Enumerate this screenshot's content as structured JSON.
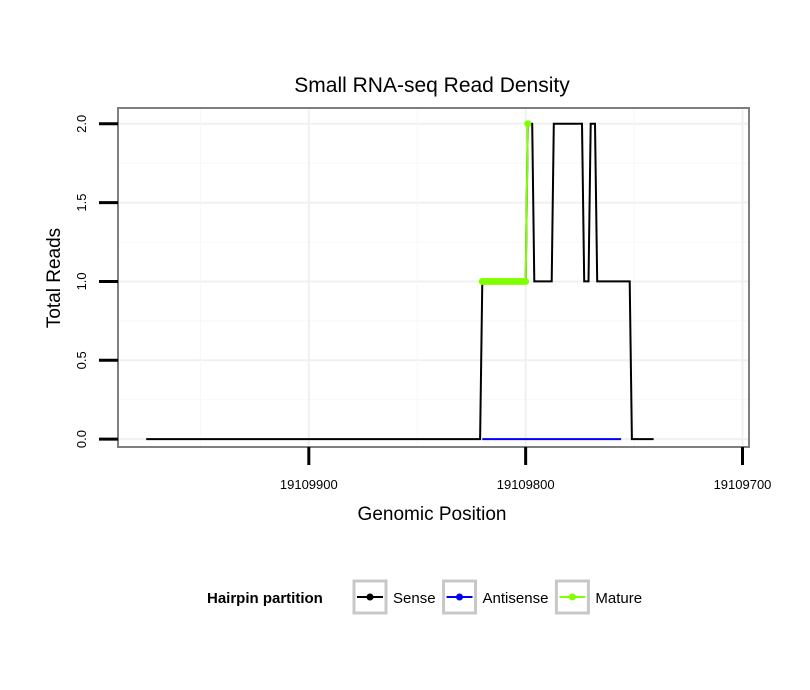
{
  "chart_data": {
    "type": "line",
    "title": "Small RNA-seq Read Density",
    "xlabel": "Genomic Position",
    "ylabel": "Total Reads",
    "xlim": [
      19109988,
      19109697
    ],
    "x_reversed": true,
    "ylim": [
      -0.05,
      2.1
    ],
    "grid": true,
    "x_ticks": [
      19109900,
      19109800,
      19109700
    ],
    "x_tick_labels": [
      "19109900",
      "19109800",
      "19109700"
    ],
    "y_ticks": [
      0.0,
      0.5,
      1.0,
      1.5,
      2.0
    ],
    "y_tick_labels": [
      "0.0",
      "0.5",
      "1.0",
      "1.5",
      "2.0"
    ],
    "series": [
      {
        "name": "Antisense",
        "color": "#0000ff",
        "x": [
          19109820,
          19109756
        ],
        "y": [
          0,
          0
        ]
      },
      {
        "name": "Sense",
        "color": "#000000",
        "x": [
          19109975,
          19109821,
          19109820,
          19109800,
          19109799,
          19109797,
          19109796,
          19109793,
          19109792,
          19109788,
          19109787,
          19109774,
          19109773,
          19109771,
          19109770,
          19109768,
          19109767,
          19109762,
          19109761,
          19109752,
          19109751,
          19109741
        ],
        "y": [
          0,
          0,
          1,
          1,
          2,
          2,
          1,
          1,
          1,
          1,
          2,
          2,
          1,
          1,
          2,
          2,
          1,
          1,
          1,
          1,
          0,
          0
        ]
      },
      {
        "name": "Mature",
        "color": "#7fff00",
        "x": [
          19109820,
          19109819,
          19109818,
          19109817,
          19109816,
          19109815,
          19109814,
          19109813,
          19109812,
          19109811,
          19109810,
          19109809,
          19109808,
          19109807,
          19109806,
          19109805,
          19109804,
          19109803,
          19109802,
          19109801,
          19109800,
          19109799
        ],
        "y": [
          1,
          1,
          1,
          1,
          1,
          1,
          1,
          1,
          1,
          1,
          1,
          1,
          1,
          1,
          1,
          1,
          1,
          1,
          1,
          1,
          1,
          2
        ]
      }
    ],
    "legend": {
      "title": "Hairpin partition",
      "position": "bottom",
      "entries": [
        {
          "label": "Sense",
          "color": "#000000"
        },
        {
          "label": "Antisense",
          "color": "#0000ff"
        },
        {
          "label": "Mature",
          "color": "#7fff00"
        }
      ]
    }
  }
}
